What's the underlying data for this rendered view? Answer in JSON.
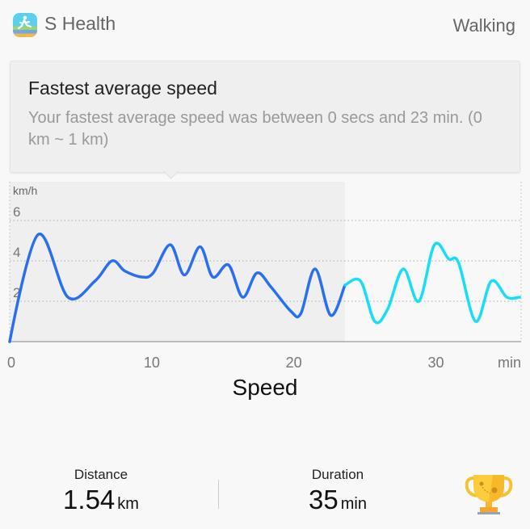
{
  "header": {
    "app_title": "S Health",
    "activity": "Walking",
    "app_icon": "running-person-icon"
  },
  "tooltip": {
    "title": "Fastest average speed",
    "body": "Your fastest average speed was between 0 secs and 23 min. (0 km ~ 1 km)"
  },
  "chart_data": {
    "type": "line",
    "title": "Speed",
    "ylabel": "km/h",
    "xlabel": "min",
    "xlim": [
      0,
      36
    ],
    "ylim": [
      0,
      7.8
    ],
    "xticks": [
      0,
      10,
      20,
      30
    ],
    "yticks": [
      2,
      4,
      6
    ],
    "grid": true,
    "highlight_range": [
      0,
      23.6
    ],
    "series": [
      {
        "color": "#2a6ff0",
        "points": [
          [
            0,
            0
          ],
          [
            2.0,
            5.3
          ],
          [
            4.1,
            2.2
          ],
          [
            6.0,
            3.0
          ],
          [
            7.2,
            4.0
          ],
          [
            8.1,
            3.5
          ],
          [
            9.3,
            3.2
          ],
          [
            10.1,
            3.4
          ],
          [
            11.3,
            4.8
          ],
          [
            12.3,
            3.3
          ],
          [
            13.4,
            4.7
          ],
          [
            14.3,
            3.2
          ],
          [
            15.4,
            3.8
          ],
          [
            16.4,
            2.2
          ],
          [
            17.4,
            3.4
          ],
          [
            18.4,
            2.7
          ],
          [
            19.8,
            1.5
          ],
          [
            20.5,
            1.4
          ],
          [
            21.5,
            3.6
          ],
          [
            22.6,
            1.3
          ],
          [
            23.6,
            2.8
          ]
        ]
      },
      {
        "color": "#18def5",
        "points": [
          [
            23.6,
            2.8
          ],
          [
            24.7,
            3.0
          ],
          [
            25.7,
            1.0
          ],
          [
            26.6,
            1.6
          ],
          [
            27.7,
            3.6
          ],
          [
            28.8,
            2.0
          ],
          [
            29.9,
            4.8
          ],
          [
            30.9,
            4.1
          ],
          [
            31.6,
            3.9
          ],
          [
            32.8,
            1.0
          ],
          [
            33.9,
            3.0
          ],
          [
            35.0,
            2.2
          ],
          [
            35.9,
            2.2
          ]
        ]
      }
    ]
  },
  "stats": {
    "distance": {
      "label": "Distance",
      "value": "1.54",
      "unit": "km"
    },
    "duration": {
      "label": "Duration",
      "value": "35",
      "unit": "min"
    },
    "trophy_icon": "trophy-icon"
  }
}
